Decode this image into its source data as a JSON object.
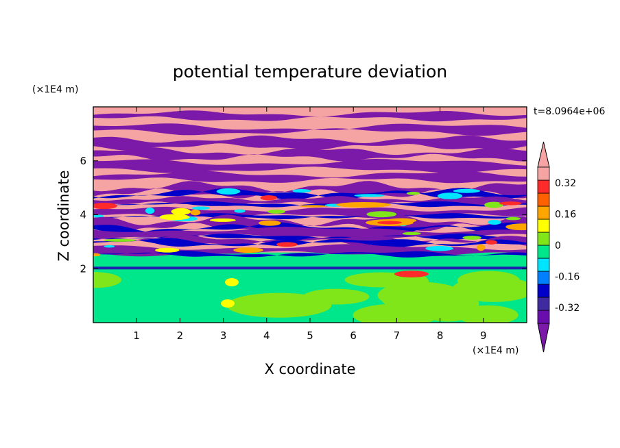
{
  "chart_data": {
    "type": "heatmap",
    "title": "potential temperature deviation",
    "xlabel": "X coordinate",
    "ylabel": "Z coordinate",
    "x_unit": "(×1E4 m)",
    "y_unit": "(×1E4 m)",
    "time_label": "t=8.0964e+06",
    "xlim": [
      0,
      10
    ],
    "ylim": [
      0,
      8
    ],
    "x_ticks": [
      1,
      2,
      3,
      4,
      5,
      6,
      7,
      8,
      9
    ],
    "y_ticks": [
      2,
      4,
      6
    ],
    "x_tick_labels": [
      "1",
      "2",
      "3",
      "4",
      "5",
      "6",
      "7",
      "8",
      "9"
    ],
    "y_tick_labels": [
      "2",
      "4",
      "6"
    ],
    "colorbar": {
      "levels": [
        -0.4,
        -0.32,
        -0.24,
        -0.16,
        -0.08,
        0,
        0.08,
        0.16,
        0.24,
        0.32,
        0.4
      ],
      "labels": [
        "0.32",
        "0.16",
        "0",
        "-0.16",
        "-0.32"
      ],
      "label_values": [
        0.32,
        0.16,
        0,
        -0.16,
        -0.32
      ],
      "colors_low_to_high": [
        "#6a0dad",
        "#3f2a9f",
        "#0000c8",
        "#0080ff",
        "#00e5ff",
        "#00e68a",
        "#80e61a",
        "#ffff00",
        "#ffa500",
        "#ff6000",
        "#ff2a2a",
        "#f5a3a3"
      ],
      "under_color": "#7b19a8",
      "over_color": "#f5a3a3"
    }
  }
}
